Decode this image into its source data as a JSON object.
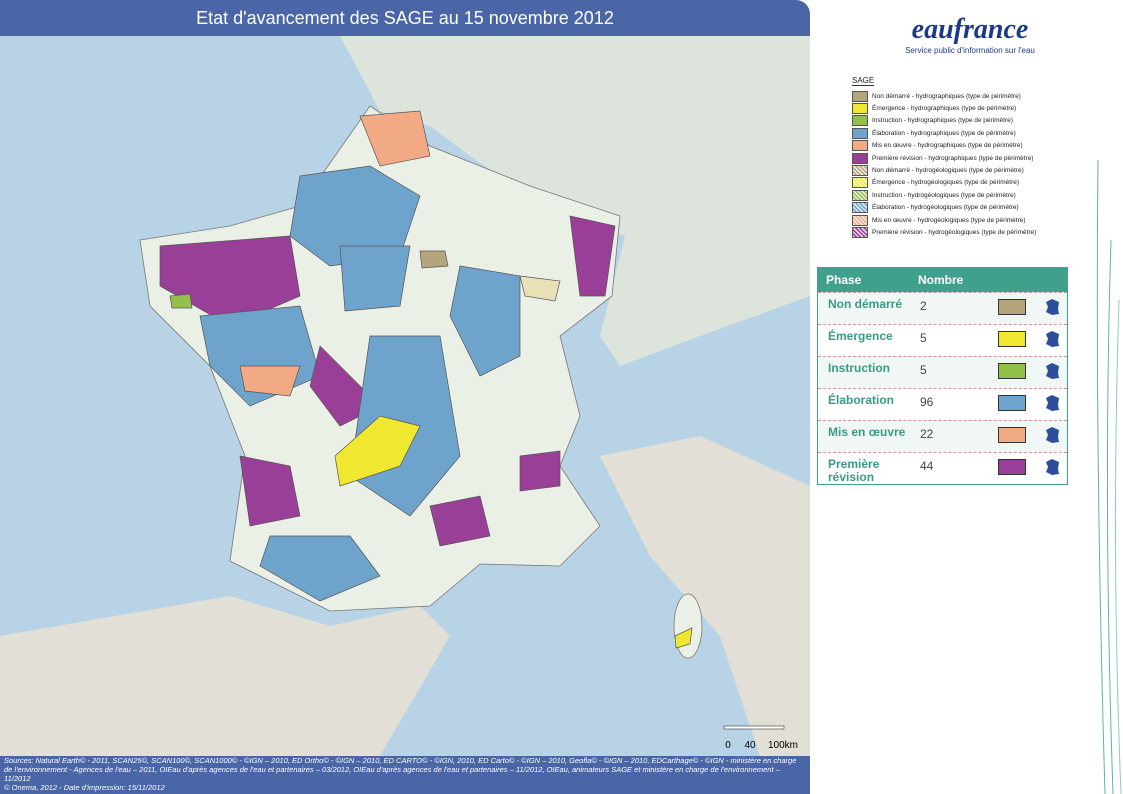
{
  "header": {
    "title": "Etat d'avancement des SAGE au 15 novembre 2012"
  },
  "logo": {
    "name": "eaufrance",
    "tagline": "Service public d'information sur l'eau"
  },
  "legend": {
    "title": "SAGE",
    "items": [
      "Non démarré - hydrographiques (type de périmètre)",
      "Émergence - hydrographiques (type de périmètre)",
      "Instruction - hydrographiques (type de périmètre)",
      "Élaboration - hydrographiques (type de périmètre)",
      "Mis en œuvre - hydrographiques (type de périmètre)",
      "Première révision - hydrographiques (type de périmètre)",
      "Non démarré - hydrogéologiques (type de périmètre)",
      "Émergence - hydrogéologiques (type de périmètre)",
      "Instruction - hydrogéologiques (type de périmètre)",
      "Élaboration - hydrogéologiques (type de périmètre)",
      "Mis en œuvre - hydrogéologiques (type de périmètre)",
      "Première révision - hydrogéologiques (type de périmètre)"
    ]
  },
  "table": {
    "headers": [
      "Phase",
      "Nombre"
    ],
    "rows": [
      [
        "Non démarré",
        2
      ],
      [
        "Émergence",
        5
      ],
      [
        "Instruction",
        5
      ],
      [
        "Élaboration",
        96
      ],
      [
        "Mis en œuvre",
        22
      ],
      [
        "Première révision",
        44
      ]
    ]
  },
  "scale": {
    "labels": [
      "0",
      "40",
      "100km"
    ]
  },
  "sources": [
    "Sources: Natural Earth© - 2011, SCAN25©, SCAN100©, SCAN1000© - ©IGN – 2010, ED Ortho© - ©IGN – 2010, ED CARTO© - ©IGN, 2010, ED Carto© - ©IGN – 2010, Geofla© - ©IGN – 2010, EDCarthage© - ©IGN - ministère en charge de l'environnement - Agences de l'eau – 2011, OIEau d'après agences de l'eau et partenaires – 03/2012, OIEau d'après agences de l'eau et partenaires – 11/2012, OIEau, animateurs SAGE et ministère en charge de l'environnement – 11/2012",
    "© Onema, 2012 - Date d'impression: 15/11/2012"
  ]
}
